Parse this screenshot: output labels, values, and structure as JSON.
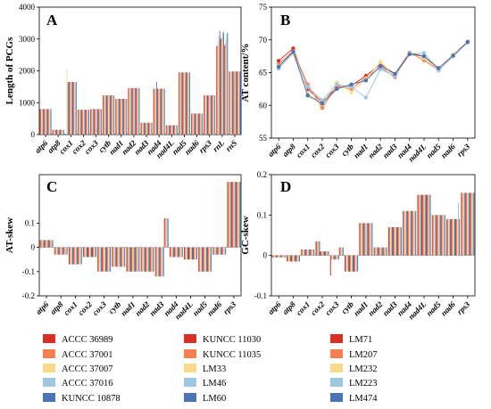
{
  "series": [
    {
      "name": "ACCC 36989",
      "color": "#d73027"
    },
    {
      "name": "ACCC 37001",
      "color": "#f4814f"
    },
    {
      "name": "ACCC 37007",
      "color": "#fbd98a"
    },
    {
      "name": "ACCC 37016",
      "color": "#9dc8e2"
    },
    {
      "name": "KUNCC 10878",
      "color": "#4a74b5"
    },
    {
      "name": "KUNCC 11030",
      "color": "#d73027"
    },
    {
      "name": "KUNCC 11035",
      "color": "#f4814f"
    },
    {
      "name": "LM33",
      "color": "#fbd98a"
    },
    {
      "name": "LM46",
      "color": "#9dc8e2"
    },
    {
      "name": "LM60",
      "color": "#4a74b5"
    },
    {
      "name": "LM71",
      "color": "#d73027"
    },
    {
      "name": "LM207",
      "color": "#f4814f"
    },
    {
      "name": "LM232",
      "color": "#fbd98a"
    },
    {
      "name": "LM223",
      "color": "#9dc8e2"
    },
    {
      "name": "LM474",
      "color": "#4a74b5"
    }
  ],
  "chart_data": [
    {
      "panel": "A",
      "type": "bar",
      "ylabel": "Length of PCGs",
      "ylim": [
        0,
        4000
      ],
      "yticks": [
        0,
        1000,
        2000,
        3000,
        4000
      ],
      "categories": [
        "atp6",
        "atp8",
        "cox1",
        "cox2",
        "cox3",
        "cytb",
        "nad1",
        "nad2",
        "nad3",
        "nad4",
        "nad4L",
        "nad5",
        "nad6",
        "rps3",
        "rnL",
        "rnS"
      ],
      "label_categories": [
        "atp6",
        "atp8",
        "cox1",
        "cox2",
        "cox3",
        "cytb",
        "nad1",
        "nad2",
        "nad3",
        "nad4",
        "nad4L",
        "nad5",
        "nad6",
        "rps3",
        "rnL",
        "rnS"
      ],
      "base": [
        800,
        150,
        1650,
        780,
        800,
        1230,
        1120,
        1460,
        370,
        1440,
        290,
        1950,
        660,
        1230,
        2780,
        1980
      ],
      "spikes": {
        "2": [
          0,
          0,
          2050,
          1650,
          1650,
          1650,
          1650,
          1650,
          1650,
          1650,
          1650,
          1650,
          1650,
          1650,
          1650
        ],
        "9": [
          1440,
          1440,
          1440,
          1440,
          1650,
          1440,
          1440,
          1440,
          1440,
          1440,
          1440,
          1440,
          1440,
          1440,
          1440
        ],
        "14": [
          2780,
          2780,
          2900,
          3100,
          3250,
          3000,
          3050,
          3100,
          3250,
          3200,
          2800,
          2850,
          3000,
          3150,
          3200
        ]
      }
    },
    {
      "panel": "B",
      "type": "line",
      "ylabel": "AT content/%",
      "ylim": [
        55,
        75
      ],
      "yticks": [
        55,
        60,
        65,
        70,
        75
      ],
      "categories": [
        "atp6",
        "atp8",
        "cox1",
        "cox2",
        "cox3",
        "cytb",
        "nad1",
        "nad2",
        "nad3",
        "nad4",
        "nad4L",
        "nad5",
        "nad6",
        "rps3"
      ],
      "lines": [
        [
          66.8,
          68.7,
          62.5,
          60.5,
          62.8,
          63.0,
          64.5,
          66.3,
          64.8,
          68.0,
          67.5,
          65.6,
          67.7,
          69.7
        ],
        [
          66.3,
          68.3,
          63.2,
          59.6,
          63.0,
          62.5,
          64.2,
          65.8,
          64.3,
          68.0,
          66.9,
          65.4,
          67.5,
          69.7
        ],
        [
          66.0,
          68.0,
          61.8,
          60.2,
          63.5,
          62.0,
          64.0,
          66.6,
          64.5,
          67.8,
          67.2,
          65.5,
          67.8,
          69.5
        ],
        [
          65.6,
          68.0,
          62.8,
          60.8,
          63.2,
          62.8,
          61.2,
          65.5,
          64.5,
          67.9,
          68.0,
          65.3,
          67.5,
          69.6
        ],
        [
          65.9,
          68.2,
          61.5,
          60.3,
          62.5,
          63.2,
          63.8,
          66.0,
          64.8,
          67.8,
          67.5,
          65.7,
          67.6,
          69.7
        ]
      ]
    },
    {
      "panel": "C",
      "type": "bar",
      "ylabel": "AT-skew",
      "ylim": [
        -0.2,
        0.3
      ],
      "yticks": [
        -0.2,
        -0.1,
        0,
        0.1
      ],
      "categories": [
        "atp6",
        "atp8",
        "cox1",
        "cox2",
        "cox3",
        "cytb",
        "nad1",
        "nad2",
        "nad3",
        "nad4",
        "nad4L",
        "nad5",
        "nad6",
        "rps3"
      ],
      "base": [
        0.03,
        -0.03,
        -0.07,
        -0.04,
        -0.1,
        -0.08,
        -0.1,
        -0.1,
        -0.12,
        -0.04,
        -0.05,
        -0.1,
        -0.03,
        0.27
      ],
      "spikes": {
        "8": [
          -0.12,
          -0.12,
          -0.12,
          -0.12,
          -0.12,
          -0.12,
          -0.12,
          -0.12,
          -0.12,
          -0.12,
          0.12,
          0.12,
          0.12,
          0.12,
          0.12
        ]
      }
    },
    {
      "panel": "D",
      "type": "bar",
      "ylabel": "GC-skew",
      "ylim": [
        -0.1,
        0.2
      ],
      "yticks": [
        -0.1,
        0,
        0.1,
        0.2
      ],
      "categories": [
        "atp6",
        "atp8",
        "cox1",
        "cox2",
        "cox3",
        "cytb",
        "nad1",
        "nad2",
        "nad3",
        "nad4",
        "nad4L",
        "nad5",
        "nad6",
        "rps3"
      ],
      "base": [
        -0.005,
        -0.015,
        0.015,
        0.02,
        -0.01,
        -0.04,
        0.08,
        0.02,
        0.07,
        0.11,
        0.15,
        0.1,
        0.09,
        0.155
      ],
      "spikes": {
        "3": [
          0.035,
          0.035,
          0.035,
          0.035,
          0.035,
          0.01,
          0.01,
          0.01,
          0.01,
          0.01,
          0.01,
          0.01,
          0.01,
          0.01,
          0.01
        ],
        "4": [
          -0.05,
          -0.01,
          -0.01,
          -0.01,
          -0.01,
          -0.01,
          -0.01,
          -0.01,
          -0.01,
          -0.01,
          0.02,
          0.02,
          0.02,
          0.02,
          0.02
        ],
        "12": [
          0.09,
          0.09,
          0.09,
          0.09,
          0.09,
          0.09,
          0.09,
          0.09,
          0.09,
          0.09,
          0.09,
          0.09,
          0.09,
          0.13,
          0.09
        ]
      }
    }
  ]
}
